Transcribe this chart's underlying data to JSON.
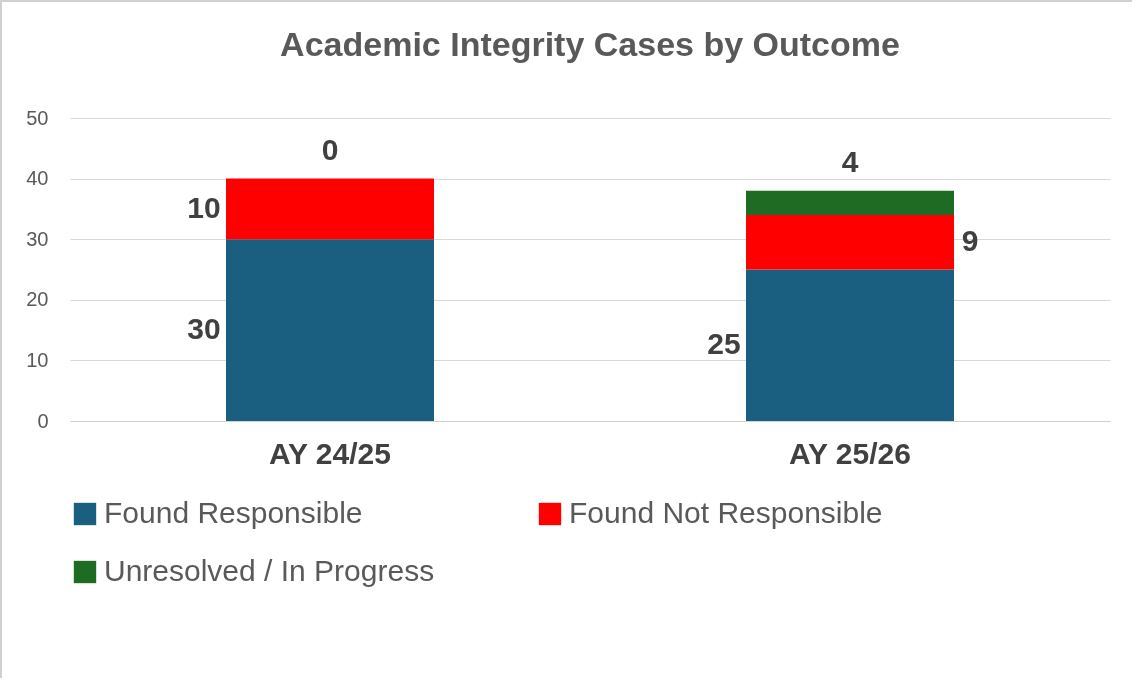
{
  "chart_data": {
    "type": "bar",
    "title": "Academic Integrity Cases by Outcome",
    "categories": [
      "AY 24/25",
      "AY 25/26"
    ],
    "stacked": true,
    "series": [
      {
        "name": "Found Responsible",
        "color": "#1a5e80",
        "values": [
          30,
          25
        ]
      },
      {
        "name": "Found Not Responsible",
        "color": "#ff0000",
        "values": [
          10,
          9
        ]
      },
      {
        "name": "Unresolved / In Progress",
        "color": "#1e6b24",
        "values": [
          0,
          4
        ]
      }
    ],
    "ylim": [
      0,
      50
    ],
    "yticks": [
      0,
      10,
      20,
      30,
      40,
      50
    ],
    "grid": "y",
    "legend": "bottom",
    "data_labels": true
  }
}
